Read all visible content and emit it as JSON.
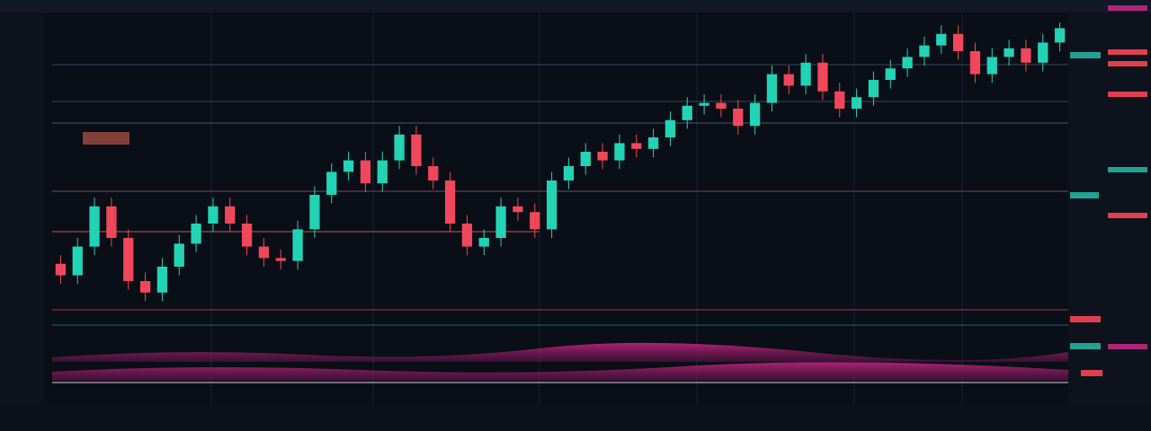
{
  "chart_data": {
    "type": "candlestick",
    "open": [
      16,
      12,
      22,
      36,
      25,
      10,
      6,
      15,
      23,
      30,
      36,
      30,
      22,
      18,
      17,
      28,
      40,
      48,
      52,
      44,
      52,
      61,
      50,
      45,
      30,
      22,
      25,
      36,
      34,
      28,
      45,
      50,
      55,
      52,
      58,
      56,
      60,
      66,
      71,
      72,
      70,
      64,
      72,
      82,
      78,
      86,
      76,
      70,
      74,
      80,
      84,
      88,
      92,
      96,
      90,
      82,
      88,
      91,
      86,
      93
    ],
    "high": [
      19,
      25,
      39,
      39,
      28,
      13,
      18,
      26,
      33,
      39,
      39,
      33,
      25,
      21,
      31,
      43,
      51,
      55,
      55,
      55,
      64,
      64,
      53,
      48,
      33,
      28,
      39,
      39,
      37,
      48,
      53,
      58,
      58,
      61,
      61,
      63,
      69,
      74,
      75,
      75,
      73,
      75,
      85,
      85,
      89,
      89,
      79,
      77,
      83,
      87,
      91,
      95,
      99,
      99,
      93,
      91,
      94,
      94,
      96,
      100
    ],
    "low": [
      9,
      9,
      19,
      22,
      7,
      3,
      3,
      12,
      20,
      27,
      27,
      19,
      15,
      14,
      14,
      25,
      37,
      45,
      41,
      41,
      49,
      47,
      42,
      27,
      19,
      19,
      22,
      31,
      25,
      25,
      42,
      47,
      49,
      49,
      53,
      53,
      57,
      63,
      68,
      67,
      61,
      61,
      69,
      75,
      75,
      73,
      67,
      67,
      71,
      77,
      81,
      85,
      89,
      87,
      79,
      79,
      85,
      83,
      83,
      90
    ],
    "close": [
      12,
      22,
      36,
      25,
      10,
      6,
      15,
      23,
      30,
      36,
      30,
      22,
      18,
      17,
      28,
      40,
      48,
      52,
      44,
      52,
      61,
      50,
      45,
      30,
      22,
      25,
      36,
      34,
      28,
      45,
      50,
      55,
      52,
      58,
      56,
      60,
      66,
      71,
      72,
      70,
      64,
      72,
      82,
      78,
      86,
      76,
      70,
      74,
      80,
      84,
      88,
      92,
      96,
      90,
      82,
      88,
      91,
      86,
      93,
      98
    ],
    "ylim": [
      0,
      100
    ],
    "colors": {
      "up": "#22d3b4",
      "down": "#f0475a"
    }
  }
}
